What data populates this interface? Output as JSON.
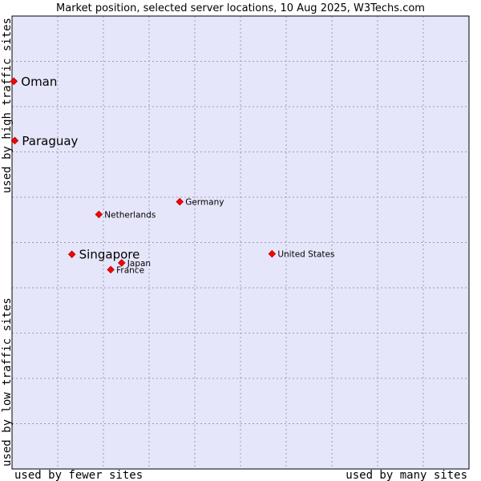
{
  "chart_data": {
    "type": "scatter",
    "title": "Market position, selected server locations, 10 Aug 2025, W3Techs.com",
    "xlabel_left": "used by fewer sites",
    "xlabel_right": "used by many sites",
    "ylabel_bottom": "used by low traffic sites",
    "ylabel_top": "used by high traffic sites",
    "xlim": [
      0,
      100
    ],
    "ylim": [
      0,
      100
    ],
    "grid": true,
    "points": [
      {
        "name": "Oman",
        "x": 0.4,
        "y": 85.6,
        "size": "large"
      },
      {
        "name": "Paraguay",
        "x": 0.6,
        "y": 72.5,
        "size": "large"
      },
      {
        "name": "Germany",
        "x": 36.7,
        "y": 59.0,
        "size": "small"
      },
      {
        "name": "Netherlands",
        "x": 19.0,
        "y": 56.2,
        "size": "small"
      },
      {
        "name": "Singapore",
        "x": 13.1,
        "y": 47.4,
        "size": "large"
      },
      {
        "name": "United States",
        "x": 56.9,
        "y": 47.5,
        "size": "small"
      },
      {
        "name": "Japan",
        "x": 24.0,
        "y": 45.5,
        "size": "small"
      },
      {
        "name": "France",
        "x": 21.6,
        "y": 44.0,
        "size": "small"
      }
    ],
    "colors": {
      "plot_bg": "#e6e6fa",
      "marker": "#ff0000",
      "marker_edge": "#aa0000",
      "border": "#000000"
    }
  }
}
